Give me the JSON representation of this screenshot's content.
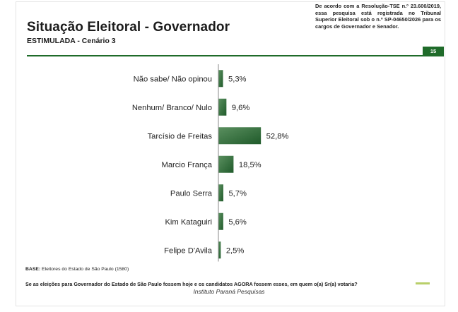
{
  "header": {
    "title": "Situação Eleitoral - Governador",
    "subtitle": "ESTIMULADA - Cenário 3",
    "legal_note": "De acordo com a Resolução-TSE n.º 23.600/2019, essa pesquisa está registrada no Tribunal Superior Eleitoral sob o n.º SP-04650/2026 para os cargos de Governador e Senador.",
    "page_number": "15"
  },
  "colors": {
    "accent": "#1f6b2a",
    "bar": "#2e6b38",
    "bar_light": "#5a8f5f"
  },
  "chart_data": {
    "type": "bar",
    "orientation": "horizontal",
    "title": "Situação Eleitoral - Governador",
    "subtitle": "ESTIMULADA - Cenário 3",
    "categories": [
      "Não sabe/ Não opinou",
      "Nenhum/ Branco/ Nulo",
      "Tarcísio de Freitas",
      "Marcio França",
      "Paulo Serra",
      "Kim Kataguiri",
      "Felipe D'Avila"
    ],
    "values": [
      5.3,
      9.6,
      52.8,
      18.5,
      5.7,
      5.6,
      2.5
    ],
    "value_labels": [
      "5,3%",
      "9,6%",
      "52,8%",
      "18,5%",
      "5,7%",
      "5,6%",
      "2,5%"
    ],
    "xlim": [
      0,
      100
    ],
    "grid": false,
    "legend": "none"
  },
  "footer": {
    "base_label": "BASE:",
    "base_text": " Eleitores do Estado de São Paulo (1580)",
    "question": "Se as eleições para Governador do Estado de São Paulo fossem hoje e os candidatos AGORA fossem esses, em quem o(a) Sr(a) votaria?",
    "source": "Instituto Paraná Pesquisas"
  }
}
